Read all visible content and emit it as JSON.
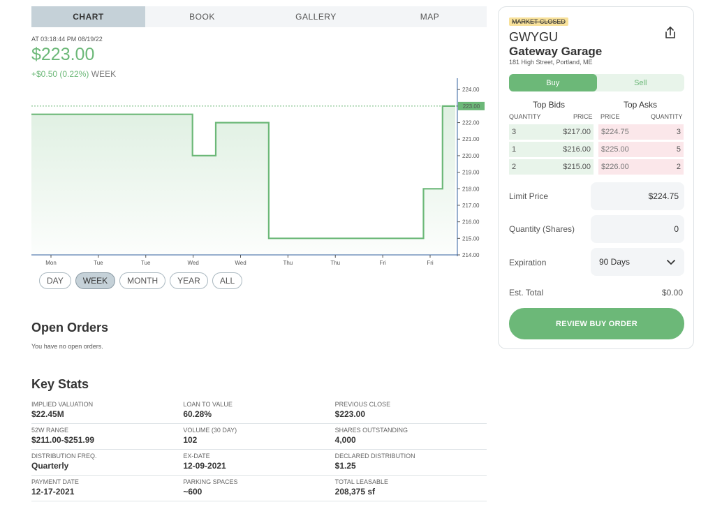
{
  "tabs": [
    {
      "label": "CHART",
      "active": true
    },
    {
      "label": "BOOK",
      "active": false
    },
    {
      "label": "GALLERY",
      "active": false
    },
    {
      "label": "MAP",
      "active": false
    }
  ],
  "quote": {
    "timestamp": "AT 03:18:44 PM 08/19/22",
    "price": "$223.00",
    "change": "+$0.50 (0.22%)",
    "period": "WEEK"
  },
  "colors": {
    "accent_green": "#6cb878",
    "ask_red": "#fbe7ea",
    "bid_green": "#e8f4ea"
  },
  "chart_data": {
    "type": "line",
    "y_ticks": [
      "214.00",
      "215.00",
      "216.00",
      "217.00",
      "218.00",
      "219.00",
      "220.00",
      "221.00",
      "222.00",
      "223.00",
      "224.00"
    ],
    "ylim": [
      214,
      224.6
    ],
    "x_ticks": [
      "Mon",
      "Tue",
      "Tue",
      "Wed",
      "Wed",
      "Thu",
      "Thu",
      "Fri",
      "Fri"
    ],
    "current_value": 223.0,
    "current_label": "223.00",
    "x": [
      0,
      0.38,
      0.38,
      0.435,
      0.435,
      0.56,
      0.56,
      0.925,
      0.925,
      0.97,
      0.97,
      1.0
    ],
    "values": [
      222.5,
      222.5,
      220.0,
      220.0,
      222.0,
      222.0,
      215.0,
      215.0,
      218.0,
      218.0,
      223.0,
      223.0
    ]
  },
  "ranges": [
    {
      "label": "DAY",
      "active": false
    },
    {
      "label": "WEEK",
      "active": true
    },
    {
      "label": "MONTH",
      "active": false
    },
    {
      "label": "YEAR",
      "active": false
    },
    {
      "label": "ALL",
      "active": false
    }
  ],
  "open_orders": {
    "title": "Open Orders",
    "empty_text": "You have no open orders."
  },
  "key_stats": {
    "title": "Key Stats",
    "rows": [
      [
        {
          "label": "IMPLIED VALUATION",
          "value": "$22.45M"
        },
        {
          "label": "LOAN TO VALUE",
          "value": "60.28%"
        },
        {
          "label": "PREVIOUS CLOSE",
          "value": "$223.00"
        }
      ],
      [
        {
          "label": "52W RANGE",
          "value": "$211.00-$251.99"
        },
        {
          "label": "VOLUME (30 DAY)",
          "value": "102"
        },
        {
          "label": "SHARES OUTSTANDING",
          "value": "4,000"
        }
      ],
      [
        {
          "label": "DISTRIBUTION FREQ.",
          "value": "Quarterly"
        },
        {
          "label": "EX-DATE",
          "value": "12-09-2021"
        },
        {
          "label": "DECLARED DISTRIBUTION",
          "value": "$1.25"
        }
      ],
      [
        {
          "label": "PAYMENT DATE",
          "value": "12-17-2021"
        },
        {
          "label": "PARKING SPACES",
          "value": "~600"
        },
        {
          "label": "TOTAL LEASABLE",
          "value": "208,375 sf"
        }
      ]
    ]
  },
  "panel": {
    "market_status": "MARKET CLOSED",
    "ticker": "GWYGU",
    "name": "Gateway Garage",
    "address": "181 High Street, Portland, ME",
    "buy_label": "Buy",
    "sell_label": "Sell",
    "bids_title": "Top Bids",
    "asks_title": "Top Asks",
    "bid_qty_header": "QUANTITY",
    "bid_price_header": "PRICE",
    "ask_price_header": "PRICE",
    "ask_qty_header": "QUANTITY",
    "bids": [
      {
        "qty": "3",
        "price": "$217.00"
      },
      {
        "qty": "1",
        "price": "$216.00"
      },
      {
        "qty": "2",
        "price": "$215.00"
      }
    ],
    "asks": [
      {
        "price": "$224.75",
        "qty": "3"
      },
      {
        "price": "$225.00",
        "qty": "5"
      },
      {
        "price": "$226.00",
        "qty": "2"
      }
    ],
    "limit_label": "Limit Price",
    "limit_value": "$224.75",
    "quantity_label": "Quantity (Shares)",
    "quantity_value": "0",
    "expiration_label": "Expiration",
    "expiration_value": "90 Days",
    "est_total_label": "Est. Total",
    "est_total_value": "$0.00",
    "review_label": "REVIEW BUY ORDER"
  }
}
